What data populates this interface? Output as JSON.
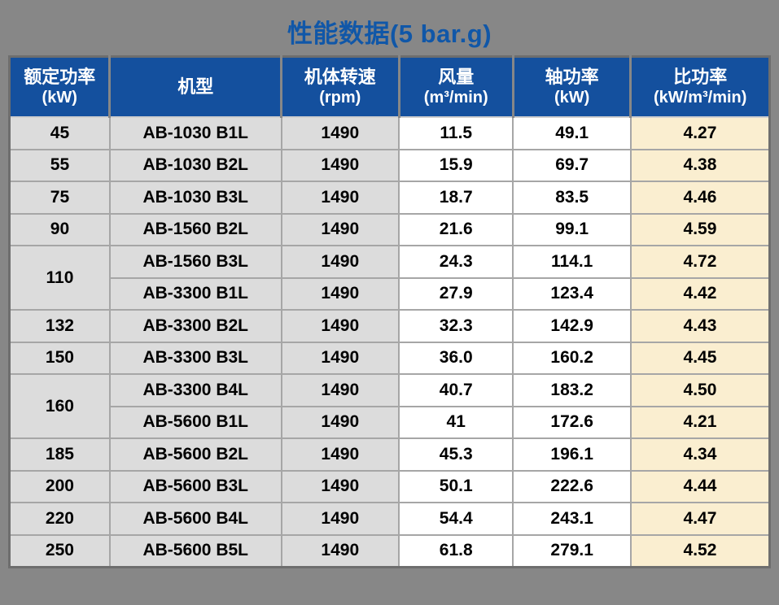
{
  "title": "性能数据(5 bar.g)",
  "colors": {
    "page_background": "#878787",
    "title_text": "#1057A8",
    "header_background": "#14509E",
    "header_text": "#FFFFFF",
    "cell_gray": "#DCDCDC",
    "cell_white": "#FFFFFF",
    "cell_cream": "#FAEED0",
    "grid_line": "#A6A6A6",
    "outer_border": "#6E6E6E"
  },
  "table": {
    "headers": [
      {
        "title": "额定功率",
        "unit": "(kW)"
      },
      {
        "title": "机型",
        "unit": ""
      },
      {
        "title": "机体转速",
        "unit": "(rpm)"
      },
      {
        "title": "风量",
        "unit": "(m³/min)"
      },
      {
        "title": "轴功率",
        "unit": "(kW)"
      },
      {
        "title": "比功率",
        "unit": "(kW/m³/min)"
      }
    ],
    "rows": [
      {
        "rated": "45",
        "model": "AB-1030 B1L",
        "rpm": "1490",
        "flow": "11.5",
        "shaft": "49.1",
        "specific": "4.27"
      },
      {
        "rated": "55",
        "model": "AB-1030 B2L",
        "rpm": "1490",
        "flow": "15.9",
        "shaft": "69.7",
        "specific": "4.38"
      },
      {
        "rated": "75",
        "model": "AB-1030 B3L",
        "rpm": "1490",
        "flow": "18.7",
        "shaft": "83.5",
        "specific": "4.46"
      },
      {
        "rated": "90",
        "model": "AB-1560 B2L",
        "rpm": "1490",
        "flow": "21.6",
        "shaft": "99.1",
        "specific": "4.59"
      },
      {
        "rated": "110",
        "model": "AB-1560 B3L",
        "rpm": "1490",
        "flow": "24.3",
        "shaft": "114.1",
        "specific": "4.72"
      },
      {
        "model": "AB-3300 B1L",
        "rpm": "1490",
        "flow": "27.9",
        "shaft": "123.4",
        "specific": "4.42"
      },
      {
        "rated": "132",
        "model": "AB-3300 B2L",
        "rpm": "1490",
        "flow": "32.3",
        "shaft": "142.9",
        "specific": "4.43"
      },
      {
        "rated": "150",
        "model": "AB-3300 B3L",
        "rpm": "1490",
        "flow": "36.0",
        "shaft": "160.2",
        "specific": "4.45"
      },
      {
        "rated": "160",
        "model": "AB-3300 B4L",
        "rpm": "1490",
        "flow": "40.7",
        "shaft": "183.2",
        "specific": "4.50"
      },
      {
        "model": "AB-5600 B1L",
        "rpm": "1490",
        "flow": "41",
        "shaft": "172.6",
        "specific": "4.21"
      },
      {
        "rated": "185",
        "model": "AB-5600 B2L",
        "rpm": "1490",
        "flow": "45.3",
        "shaft": "196.1",
        "specific": "4.34"
      },
      {
        "rated": "200",
        "model": "AB-5600 B3L",
        "rpm": "1490",
        "flow": "50.1",
        "shaft": "222.6",
        "specific": "4.44"
      },
      {
        "rated": "220",
        "model": "AB-5600 B4L",
        "rpm": "1490",
        "flow": "54.4",
        "shaft": "243.1",
        "specific": "4.47"
      },
      {
        "rated": "250",
        "model": "AB-5600 B5L",
        "rpm": "1490",
        "flow": "61.8",
        "shaft": "279.1",
        "specific": "4.52"
      }
    ]
  }
}
